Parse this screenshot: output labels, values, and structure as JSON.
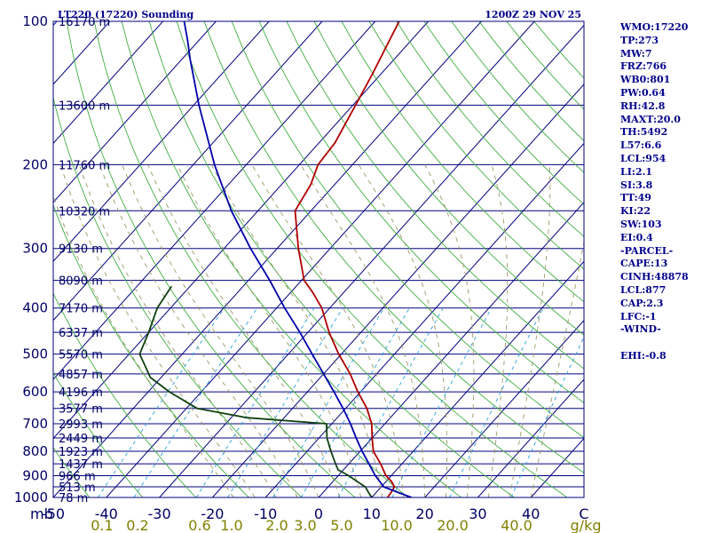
{
  "header": {
    "station": "LT220 (17220) Sounding",
    "time": "1200Z 29 NOV 25"
  },
  "indices": [
    "WMO:17220",
    "TP:273",
    "MW:7",
    "FRZ:766",
    "WB0:801",
    "PW:0.64",
    "RH:42.8",
    "MAXT:20.0",
    "TH:5492",
    "L57:6.6",
    "LCL:954",
    "LI:2.1",
    "SI:3.8",
    "TT:49",
    "KI:22",
    "SW:103",
    "EI:0.4",
    "-PARCEL-",
    "CAPE:13",
    "CINH:48878",
    "LCL:877",
    "CAP:2.3",
    "LFC:-1",
    "-WIND-",
    "",
    "EHI:-0.8"
  ],
  "colors": {
    "isobar": "#000080",
    "isotherm": "#000080",
    "dry_adiabat": "#3fae3f",
    "moist_adiabat": "#999966",
    "mixing_ratio": "#2aa0dc",
    "temperature": "#b00000",
    "dewpoint": "#104010",
    "parcel": "#0000aa"
  },
  "chart_data": {
    "type": "line",
    "chart_kind": "skew-T log-P sounding",
    "x_axis_label": "mb",
    "x_range": [
      -50,
      50
    ],
    "y_range_hPa": [
      1000,
      100
    ],
    "y_scale": "log",
    "pressure_labels": [
      {
        "p": 1000,
        "label": "1000"
      },
      {
        "p": 900,
        "label": "900"
      },
      {
        "p": 800,
        "label": "800"
      },
      {
        "p": 700,
        "label": "700"
      },
      {
        "p": 600,
        "label": "600"
      },
      {
        "p": 500,
        "label": "500"
      },
      {
        "p": 400,
        "label": "400"
      },
      {
        "p": 300,
        "label": "300"
      },
      {
        "p": 200,
        "label": "200"
      },
      {
        "p": 100,
        "label": "100"
      }
    ],
    "height_levels": [
      {
        "p": 100,
        "label": "16170 m"
      },
      {
        "p": 150,
        "label": "13600 m"
      },
      {
        "p": 200,
        "label": "11760 m"
      },
      {
        "p": 250,
        "label": "10320 m"
      },
      {
        "p": 300,
        "label": "9130 m"
      },
      {
        "p": 350,
        "label": "8090 m"
      },
      {
        "p": 400,
        "label": "7170 m"
      },
      {
        "p": 450,
        "label": "6337 m"
      },
      {
        "p": 500,
        "label": "5570 m"
      },
      {
        "p": 550,
        "label": "4857 m"
      },
      {
        "p": 600,
        "label": "4196 m"
      },
      {
        "p": 650,
        "label": "3577 m"
      },
      {
        "p": 700,
        "label": "2993 m"
      },
      {
        "p": 750,
        "label": "2449 m"
      },
      {
        "p": 800,
        "label": "1923 m"
      },
      {
        "p": 850,
        "label": "1437 m"
      },
      {
        "p": 900,
        "label": "966 m"
      },
      {
        "p": 950,
        "label": "513 m"
      },
      {
        "p": 1000,
        "label": "78 m"
      }
    ],
    "temperature_ticks": [
      {
        "value": -50,
        "label": "-50"
      },
      {
        "value": -40,
        "label": "-40"
      },
      {
        "value": -30,
        "label": "-30"
      },
      {
        "value": -20,
        "label": "-20"
      },
      {
        "value": -10,
        "label": "-10"
      },
      {
        "value": 0,
        "label": "0"
      },
      {
        "value": 10,
        "label": "10"
      },
      {
        "value": 20,
        "label": "20"
      },
      {
        "value": 30,
        "label": "30"
      },
      {
        "value": 40,
        "label": "40"
      },
      {
        "value": 50,
        "label": "C"
      }
    ],
    "mixing_ratio_labels": [
      "0.1",
      "0.2",
      "0.6",
      "1.0",
      "2.0",
      "3.0",
      "5.0",
      "10.0",
      "20.0",
      "40.0"
    ],
    "mixing_ratio_unit": "g/kg",
    "mixing_ratio_values": [
      0.1,
      0.2,
      0.6,
      1,
      2,
      3,
      5,
      10,
      20,
      40
    ],
    "series": [
      {
        "name": "temperature",
        "points": [
          [
            1000,
            13.0
          ],
          [
            975,
            12.8
          ],
          [
            950,
            12.5
          ],
          [
            925,
            11.0
          ],
          [
            900,
            9.0
          ],
          [
            850,
            6.0
          ],
          [
            800,
            2.5
          ],
          [
            750,
            0.0
          ],
          [
            700,
            -2.5
          ],
          [
            650,
            -6.0
          ],
          [
            600,
            -10.5
          ],
          [
            550,
            -15.0
          ],
          [
            500,
            -20.5
          ],
          [
            450,
            -26.0
          ],
          [
            400,
            -31.5
          ],
          [
            370,
            -36.0
          ],
          [
            350,
            -39.5
          ],
          [
            300,
            -46.0
          ],
          [
            250,
            -53.0
          ],
          [
            220,
            -54.5
          ],
          [
            200,
            -56.5
          ],
          [
            180,
            -57.0
          ],
          [
            150,
            -59.5
          ],
          [
            130,
            -61.5
          ],
          [
            100,
            -65.5
          ]
        ]
      },
      {
        "name": "dewpoint",
        "points": [
          [
            1000,
            10.0
          ],
          [
            975,
            8.5
          ],
          [
            950,
            7.0
          ],
          [
            925,
            4.5
          ],
          [
            900,
            2.0
          ],
          [
            875,
            -1.0
          ],
          [
            850,
            -2.5
          ],
          [
            800,
            -5.5
          ],
          [
            750,
            -8.5
          ],
          [
            700,
            -11.0
          ],
          [
            680,
            -27.0
          ],
          [
            650,
            -38.0
          ],
          [
            600,
            -46.0
          ],
          [
            560,
            -52.0
          ],
          [
            500,
            -58.0
          ],
          [
            450,
            -60.0
          ],
          [
            400,
            -62.5
          ],
          [
            360,
            -63.5
          ]
        ]
      },
      {
        "name": "parcel",
        "points": [
          [
            1000,
            17.5
          ],
          [
            975,
            14.0
          ],
          [
            950,
            10.5
          ],
          [
            900,
            7.0
          ],
          [
            850,
            3.8
          ],
          [
            800,
            0.4
          ],
          [
            750,
            -3.0
          ],
          [
            700,
            -6.5
          ],
          [
            650,
            -10.5
          ],
          [
            600,
            -15.0
          ],
          [
            550,
            -20.0
          ],
          [
            500,
            -25.5
          ],
          [
            450,
            -31.5
          ],
          [
            400,
            -38.5
          ],
          [
            350,
            -46.0
          ],
          [
            300,
            -55.0
          ],
          [
            250,
            -65.0
          ],
          [
            200,
            -76.0
          ],
          [
            150,
            -89.0
          ],
          [
            120,
            -98.5
          ],
          [
            110,
            -102.0
          ],
          [
            100,
            -106.0
          ]
        ]
      }
    ]
  }
}
